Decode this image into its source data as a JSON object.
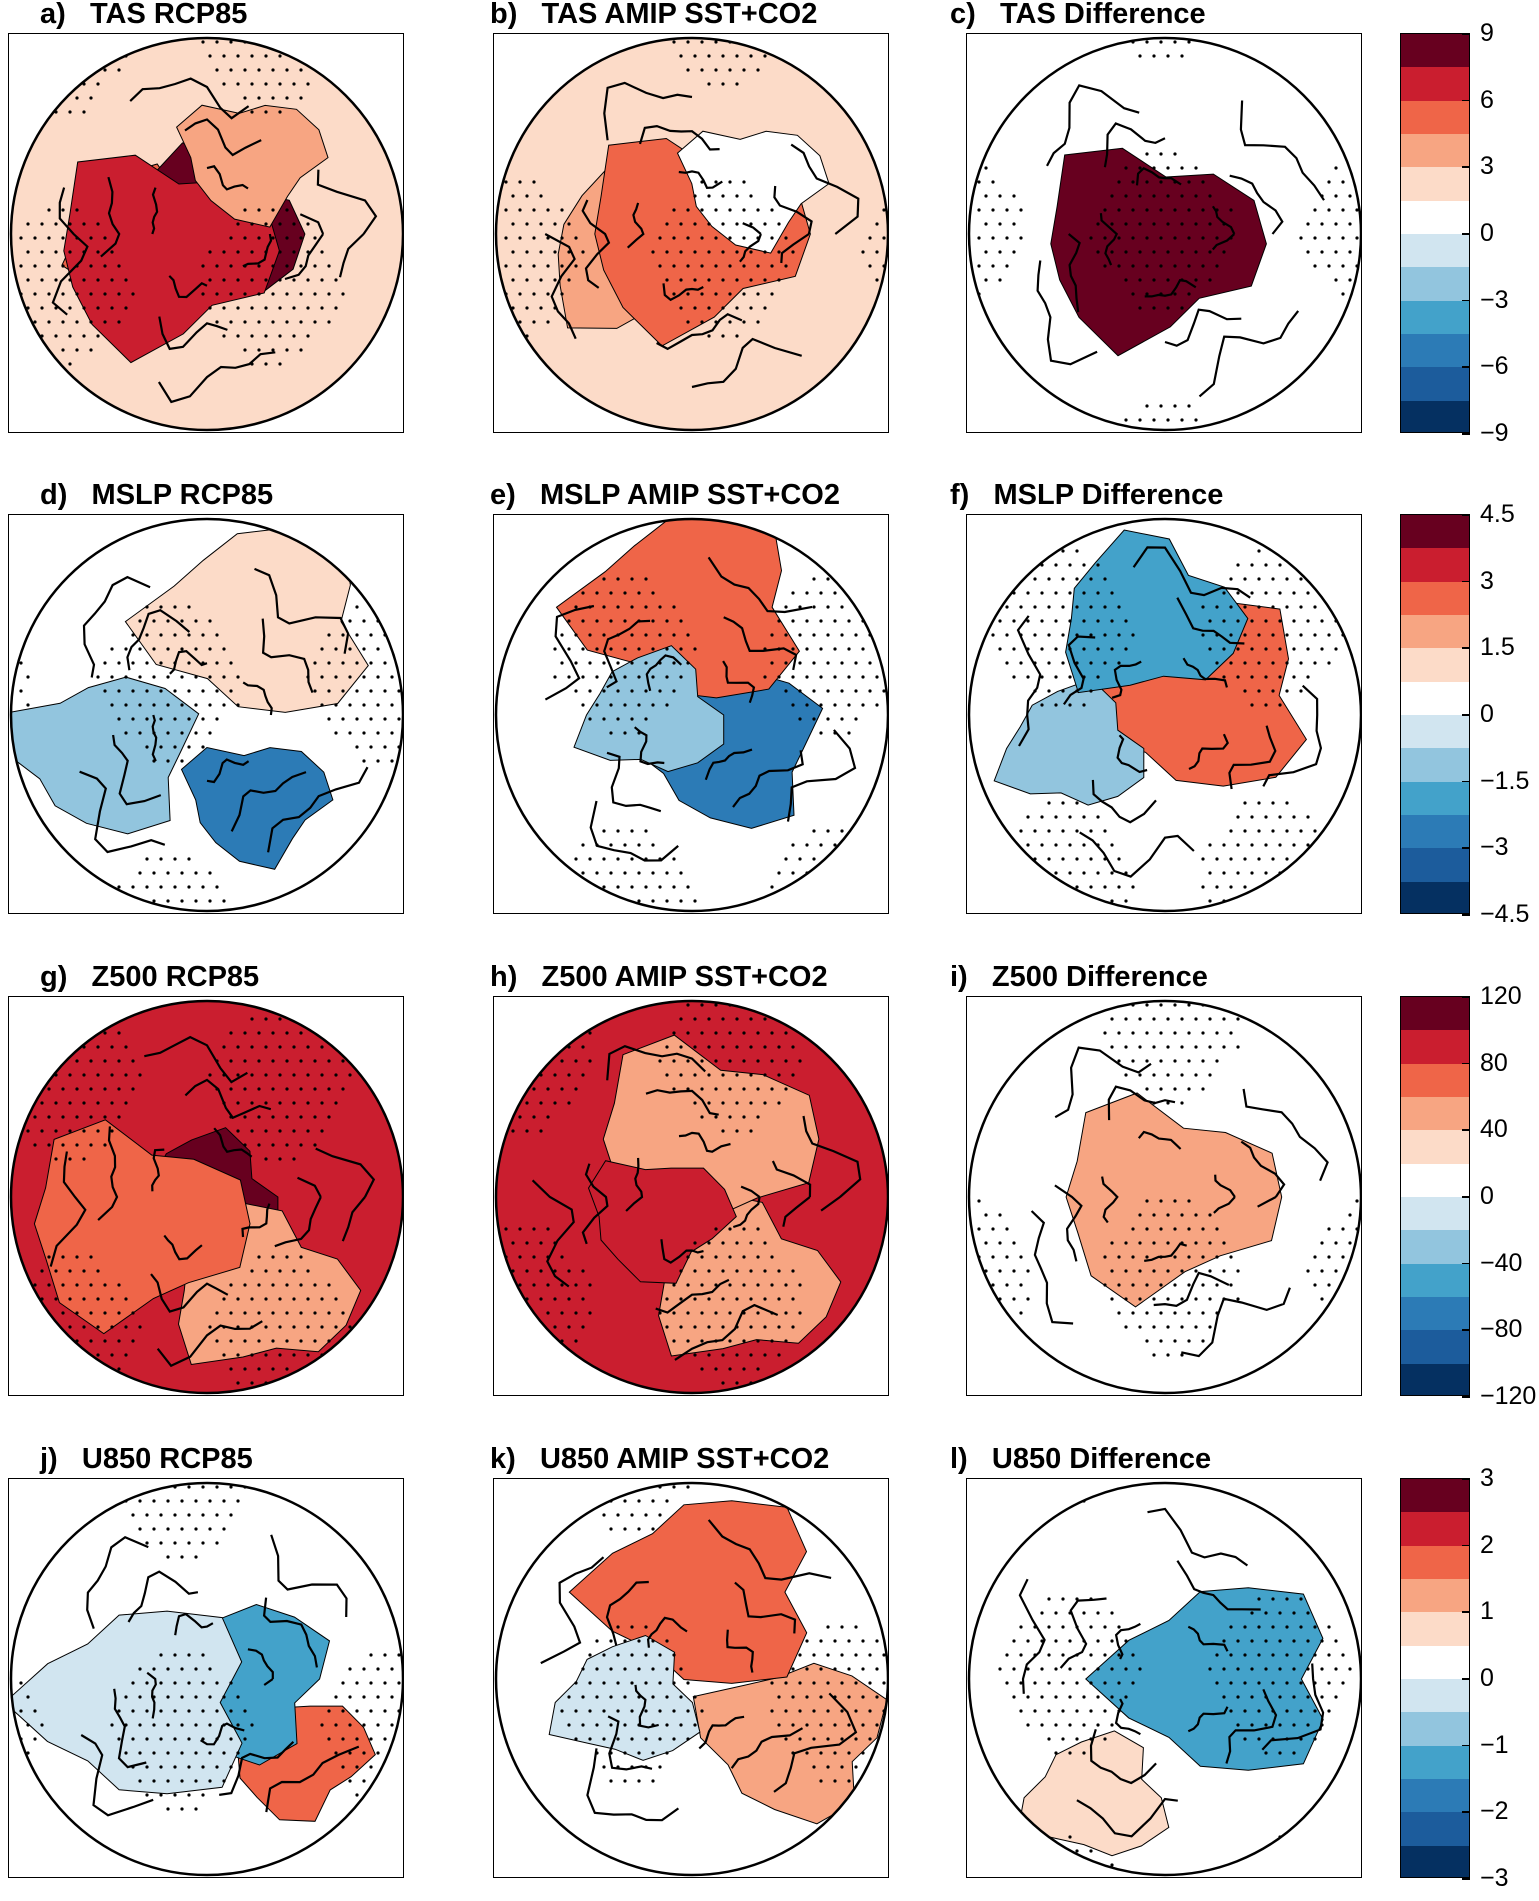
{
  "rows": [
    {
      "variable": "TAS",
      "panels": [
        {
          "label": "a)",
          "title": "TAS RCP85"
        },
        {
          "label": "b)",
          "title": "TAS AMIP SST+CO2"
        },
        {
          "label": "c)",
          "title": "TAS Difference"
        }
      ],
      "colorbar": {
        "ticks": [
          "9",
          "6",
          "3",
          "0",
          "−3",
          "−6",
          "−9"
        ]
      }
    },
    {
      "variable": "MSLP",
      "panels": [
        {
          "label": "d)",
          "title": "MSLP RCP85"
        },
        {
          "label": "e)",
          "title": "MSLP AMIP SST+CO2"
        },
        {
          "label": "f)",
          "title": "MSLP Difference"
        }
      ],
      "colorbar": {
        "ticks": [
          "4.5",
          "3",
          "1.5",
          "0",
          "−1.5",
          "−3",
          "−4.5"
        ]
      }
    },
    {
      "variable": "Z500",
      "panels": [
        {
          "label": "g)",
          "title": "Z500 RCP85"
        },
        {
          "label": "h)",
          "title": "Z500 AMIP SST+CO2"
        },
        {
          "label": "i)",
          "title": "Z500 Difference"
        }
      ],
      "colorbar": {
        "ticks": [
          "120",
          "80",
          "40",
          "0",
          "−40",
          "−80",
          "−120"
        ]
      }
    },
    {
      "variable": "U850",
      "panels": [
        {
          "label": "j)",
          "title": "U850 RCP85"
        },
        {
          "label": "k)",
          "title": "U850 AMIP SST+CO2"
        },
        {
          "label": "l)",
          "title": "U850 Difference"
        }
      ],
      "colorbar": {
        "ticks": [
          "3",
          "2",
          "1",
          "0",
          "−1",
          "−2",
          "−3"
        ]
      }
    }
  ],
  "palette": [
    "#67001f",
    "#ca1e2f",
    "#ef6548",
    "#f7a582",
    "#fcdbc8",
    "#ffffff",
    "#d1e5f0",
    "#92c5de",
    "#43a2ca",
    "#2c7bb6",
    "#1c5c9c",
    "#053061"
  ],
  "map_fields": [
    {
      "panel": "a)",
      "base": "#fcdbc8",
      "blobs": [
        {
          "lon": 180,
          "r": 0.35,
          "c": "#ef6548"
        },
        {
          "lon": 0,
          "r": 0.0,
          "c": "#67001f"
        },
        {
          "lon": 200,
          "r": 0.25,
          "c": "#ca1e2f"
        },
        {
          "lon": 60,
          "r": 0.45,
          "c": "#f7a582"
        }
      ]
    },
    {
      "panel": "b)",
      "base": "#fcdbc8",
      "blobs": [
        {
          "lon": 200,
          "r": 0.3,
          "c": "#f7a582"
        },
        {
          "lon": 0,
          "r": 0.0,
          "c": "#ef6548"
        },
        {
          "lon": 40,
          "r": 0.4,
          "c": "#ffffff"
        }
      ]
    },
    {
      "panel": "c)",
      "base": "#ffffff",
      "blobs": [
        {
          "lon": 210,
          "r": 0.1,
          "c": "#67001f"
        }
      ]
    },
    {
      "panel": "d)",
      "base": "#ffffff",
      "blobs": [
        {
          "lon": 300,
          "r": 0.5,
          "c": "#2c7bb6"
        },
        {
          "lon": 200,
          "r": 0.55,
          "c": "#92c5de"
        },
        {
          "lon": 60,
          "r": 0.55,
          "c": "#fcdbc8"
        }
      ]
    },
    {
      "panel": "e)",
      "base": "#ffffff",
      "blobs": [
        {
          "lon": 320,
          "r": 0.25,
          "c": "#2c7bb6"
        },
        {
          "lon": 90,
          "r": 0.55,
          "c": "#ef6548"
        },
        {
          "lon": 180,
          "r": 0.2,
          "c": "#92c5de"
        }
      ]
    },
    {
      "panel": "f)",
      "base": "#ffffff",
      "blobs": [
        {
          "lon": 30,
          "r": 0.2,
          "c": "#ef6548"
        },
        {
          "lon": 200,
          "r": 0.5,
          "c": "#92c5de"
        },
        {
          "lon": 100,
          "r": 0.5,
          "c": "#43a2ca"
        }
      ]
    },
    {
      "panel": "g)",
      "base": "#ca1e2f",
      "blobs": [
        {
          "lon": 0,
          "r": 0.0,
          "c": "#67001f"
        },
        {
          "lon": 300,
          "r": 0.55,
          "c": "#f7a582"
        },
        {
          "lon": 200,
          "r": 0.4,
          "c": "#ef6548"
        }
      ]
    },
    {
      "panel": "h)",
      "base": "#ca1e2f",
      "blobs": [
        {
          "lon": 300,
          "r": 0.5,
          "c": "#f7a582"
        },
        {
          "lon": 80,
          "r": 0.3,
          "c": "#f7a582"
        },
        {
          "lon": 210,
          "r": 0.2,
          "c": "#ca1e2f"
        }
      ]
    },
    {
      "panel": "i)",
      "base": "#ffffff",
      "blobs": [
        {
          "lon": 0,
          "r": 0.0,
          "c": "#f7a582"
        }
      ]
    },
    {
      "panel": "j)",
      "base": "#ffffff",
      "blobs": [
        {
          "lon": 320,
          "r": 0.6,
          "c": "#ef6548"
        },
        {
          "lon": 0,
          "r": 0.15,
          "c": "#43a2ca"
        },
        {
          "lon": 200,
          "r": 0.35,
          "c": "#d1e5f0"
        }
      ]
    },
    {
      "panel": "k)",
      "base": "#ffffff",
      "blobs": [
        {
          "lon": 330,
          "r": 0.6,
          "c": "#f7a582"
        },
        {
          "lon": 80,
          "r": 0.45,
          "c": "#ef6548"
        },
        {
          "lon": 200,
          "r": 0.35,
          "c": "#d1e5f0"
        }
      ]
    },
    {
      "panel": "l)",
      "base": "#ffffff",
      "blobs": [
        {
          "lon": 0,
          "r": 0.3,
          "c": "#43a2ca"
        },
        {
          "lon": 240,
          "r": 0.7,
          "c": "#fcdbc8"
        }
      ]
    }
  ]
}
